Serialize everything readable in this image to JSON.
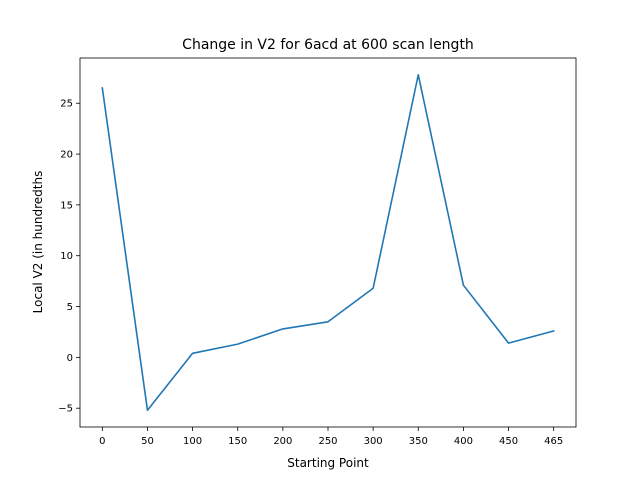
{
  "chart_data": {
    "type": "line",
    "title": "Change in V2 for 6acd at 600 scan length",
    "xlabel": "Starting Point",
    "ylabel": "Local V2 (in hundredths",
    "categories": [
      "0",
      "50",
      "100",
      "150",
      "200",
      "250",
      "300",
      "350",
      "400",
      "450",
      "465"
    ],
    "series": [
      {
        "name": "Local V2",
        "values": [
          26.5,
          -5.2,
          0.4,
          1.3,
          2.8,
          3.5,
          6.8,
          27.8,
          7.1,
          1.4,
          2.6
        ]
      }
    ],
    "yticks": [
      -5,
      0,
      5,
      10,
      15,
      20,
      25
    ],
    "ylim": [
      -6.85,
      29.45
    ],
    "line_color": "#1f77b4",
    "grid": false,
    "legend": false
  }
}
